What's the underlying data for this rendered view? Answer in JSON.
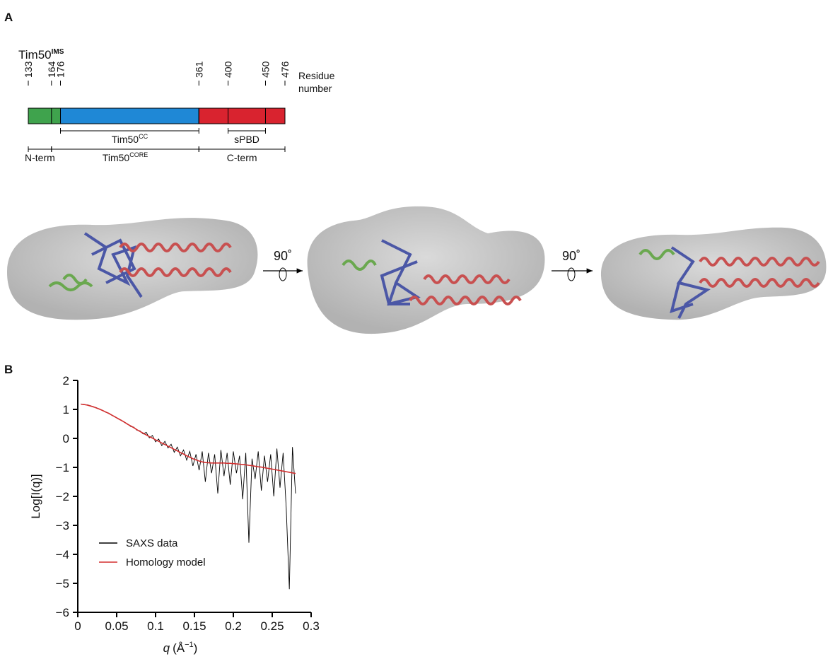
{
  "panel_a": {
    "label": "A",
    "protein": {
      "name": "Tim50",
      "sup": "IMS"
    },
    "residue_caption": [
      "Residue",
      "number"
    ],
    "residues": [
      133,
      164,
      176,
      361,
      400,
      450,
      476
    ],
    "segments": [
      {
        "start": 133,
        "end": 176,
        "color": "#3fa34d"
      },
      {
        "start": 176,
        "end": 361,
        "color": "#1f88d6"
      },
      {
        "start": 361,
        "end": 476,
        "color": "#d9232f"
      }
    ],
    "domains": [
      {
        "start": 176,
        "end": 361,
        "text": "Tim50",
        "sup": "CC"
      },
      {
        "start": 400,
        "end": 450,
        "text": "sPBD"
      }
    ],
    "regions": [
      {
        "start": 133,
        "end": 164,
        "text": "N-term"
      },
      {
        "start": 164,
        "end": 361,
        "text": "Tim50",
        "sup": "CORE"
      },
      {
        "start": 361,
        "end": 476,
        "text": "C-term"
      }
    ],
    "rotations": [
      "90˚",
      "90˚"
    ]
  },
  "panel_b": {
    "label": "B"
  },
  "chart_data": {
    "type": "line",
    "y_label": "Log[I(q)]",
    "x_label": {
      "var": "q",
      "unit": "(Å",
      "exp": "−1",
      "close": ")"
    },
    "xlim": [
      0,
      0.3
    ],
    "ylim": [
      -6,
      2
    ],
    "xticks": [
      0,
      0.05,
      0.1,
      0.15,
      0.2,
      0.25,
      0.3
    ],
    "yticks": [
      {
        "value": -6,
        "label": "−6"
      },
      {
        "value": -5,
        "label": "−5"
      },
      {
        "value": -4,
        "label": "−4"
      },
      {
        "value": -3,
        "label": "−3"
      },
      {
        "value": -2,
        "label": "−2"
      },
      {
        "value": -1,
        "label": "−1"
      },
      0,
      1,
      2
    ],
    "x": [
      0.004,
      0.008,
      0.012,
      0.016,
      0.02,
      0.024,
      0.028,
      0.032,
      0.036,
      0.04,
      0.044,
      0.048,
      0.052,
      0.056,
      0.06,
      0.064,
      0.068,
      0.072,
      0.076,
      0.08,
      0.084,
      0.088,
      0.092,
      0.096,
      0.1,
      0.104,
      0.108,
      0.112,
      0.116,
      0.12,
      0.124,
      0.128,
      0.132,
      0.136,
      0.14,
      0.144,
      0.148,
      0.152,
      0.156,
      0.16,
      0.164,
      0.168,
      0.172,
      0.176,
      0.18,
      0.184,
      0.188,
      0.192,
      0.196,
      0.2,
      0.204,
      0.208,
      0.212,
      0.216,
      0.22,
      0.224,
      0.228,
      0.232,
      0.236,
      0.24,
      0.244,
      0.248,
      0.252,
      0.256,
      0.26,
      0.264,
      0.268,
      0.272,
      0.276,
      0.28
    ],
    "series": [
      {
        "name": "SAXS data",
        "color": "#000000",
        "values": [
          1.19,
          1.16,
          1.16,
          1.13,
          1.08,
          1.06,
          1.0,
          0.97,
          0.9,
          0.87,
          0.79,
          0.75,
          0.67,
          0.63,
          0.55,
          0.5,
          0.41,
          0.39,
          0.28,
          0.26,
          0.15,
          0.21,
          0.02,
          0.1,
          -0.12,
          -0.02,
          -0.25,
          -0.1,
          -0.33,
          -0.2,
          -0.48,
          -0.3,
          -0.6,
          -0.4,
          -0.75,
          -0.45,
          -0.95,
          -0.55,
          -1.1,
          -0.45,
          -1.5,
          -0.5,
          -1.2,
          -0.55,
          -1.9,
          -0.4,
          -1.3,
          -0.5,
          -1.6,
          -0.45,
          -1.2,
          -0.6,
          -2.1,
          -0.5,
          -3.6,
          -0.7,
          -1.4,
          -0.45,
          -1.8,
          -0.6,
          -1.5,
          -0.55,
          -2.0,
          -0.35,
          -1.7,
          -0.5,
          -2.4,
          -5.2,
          -0.3,
          -1.9
        ]
      },
      {
        "name": "Homology model",
        "color": "#d32f2f",
        "values": [
          1.18,
          1.17,
          1.15,
          1.12,
          1.09,
          1.05,
          1.01,
          0.96,
          0.91,
          0.86,
          0.8,
          0.74,
          0.68,
          0.62,
          0.56,
          0.49,
          0.43,
          0.37,
          0.3,
          0.24,
          0.18,
          0.12,
          0.06,
          0.01,
          -0.05,
          -0.1,
          -0.16,
          -0.21,
          -0.27,
          -0.32,
          -0.38,
          -0.43,
          -0.49,
          -0.54,
          -0.6,
          -0.65,
          -0.7,
          -0.74,
          -0.78,
          -0.81,
          -0.83,
          -0.84,
          -0.85,
          -0.85,
          -0.85,
          -0.85,
          -0.85,
          -0.86,
          -0.86,
          -0.87,
          -0.88,
          -0.89,
          -0.9,
          -0.91,
          -0.93,
          -0.94,
          -0.96,
          -0.98,
          -0.99,
          -1.01,
          -1.03,
          -1.05,
          -1.07,
          -1.09,
          -1.11,
          -1.13,
          -1.15,
          -1.17,
          -1.19,
          -1.21
        ]
      }
    ]
  }
}
